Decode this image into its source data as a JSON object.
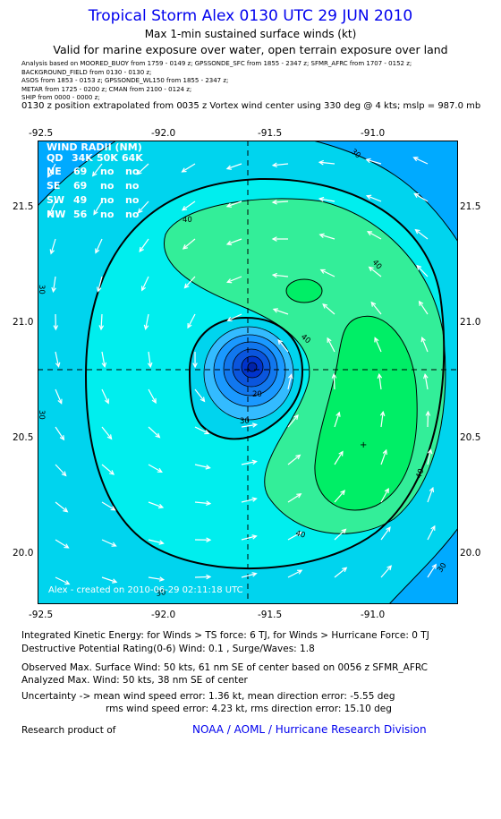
{
  "header": {
    "title": "Tropical Storm Alex 0130 UTC 29 JUN 2010",
    "subtitle": "Max 1-min sustained surface winds (kt)",
    "validity": "Valid for marine exposure over water, open terrain exposure over land",
    "analysis_lines": [
      "Analysis based on  MOORED_BUOY from 1759 - 0149 z;  GPSSONDE_SFC from 1855 - 2347 z;  SFMR_AFRC from 1707 - 0152 z;",
      "BACKGROUND_FIELD from 0130 - 0130 z;",
      "ASOS from 1853 - 0153 z;  GPSSONDE_WL150 from 1855 - 2347 z;",
      "METAR from 1725 - 0200 z;  CMAN from 2100 - 0124 z;",
      "SHIP from 0000 - 0000 z;"
    ],
    "position_note": "0130 z position extrapolated from 0035 z Vortex wind center using 330 deg @ 4 kts; mslp = 987.0 mb"
  },
  "chart_data": {
    "type": "contour",
    "xlim": [
      -92.6,
      -90.6
    ],
    "ylim": [
      19.8,
      21.8
    ],
    "x_ticks": [
      "-92.5",
      "-92.0",
      "-91.5",
      "-91.0"
    ],
    "y_ticks": [
      "21.5",
      "21.0",
      "20.5",
      "20.0"
    ],
    "center": {
      "lon": -91.58,
      "lat": 20.79
    },
    "max_wind_marker": {
      "lon": -91.06,
      "lat": 20.47
    },
    "contour_labels": [
      "30",
      "40",
      "40",
      "40",
      "40",
      "40",
      "30",
      "30",
      "20",
      "30",
      "30",
      "30"
    ],
    "wind_radii": {
      "header": "WIND RADII (NM)",
      "columns": [
        "QD",
        "34K",
        "50K",
        "64K"
      ],
      "rows": [
        [
          "NE",
          "69",
          "no",
          "no"
        ],
        [
          "SE",
          "69",
          "no",
          "no"
        ],
        [
          "SW",
          "49",
          "no",
          "no"
        ],
        [
          "NW",
          "56",
          "no",
          "no"
        ]
      ]
    },
    "credit": "Alex - created on 2010-06-29 02:11:18 UTC",
    "colors": {
      "c20": "#00aaff",
      "c30": "#00eeee",
      "c40": "#33ee99",
      "c50": "#00ee66",
      "core_outer": "#0099ff",
      "core_inner": "#0022cc"
    }
  },
  "stats": {
    "ike": "Integrated Kinetic Energy:  for Winds > TS force: 6 TJ,  for Winds > Hurricane Force: 0 TJ",
    "dpr": "Destructive Potential Rating(0-6)   Wind: 0.1 , Surge/Waves: 1.8",
    "observed": "Observed Max. Surface Wind: 50 kts, 61 nm SE of center based on 0056 z SFMR_AFRC",
    "analyzed": "Analyzed Max. Wind: 50 kts, 38 nm SE of center",
    "uncertainty1": "Uncertainty -> mean wind speed error: 1.36 kt,   mean direction error:  -5.55 deg",
    "uncertainty2": "rms wind speed error: 4.23 kt,   rms direction error: 15.10 deg"
  },
  "footer": {
    "research_label": "Research product of",
    "org_link": "NOAA / AOML / Hurricane Research Division"
  }
}
